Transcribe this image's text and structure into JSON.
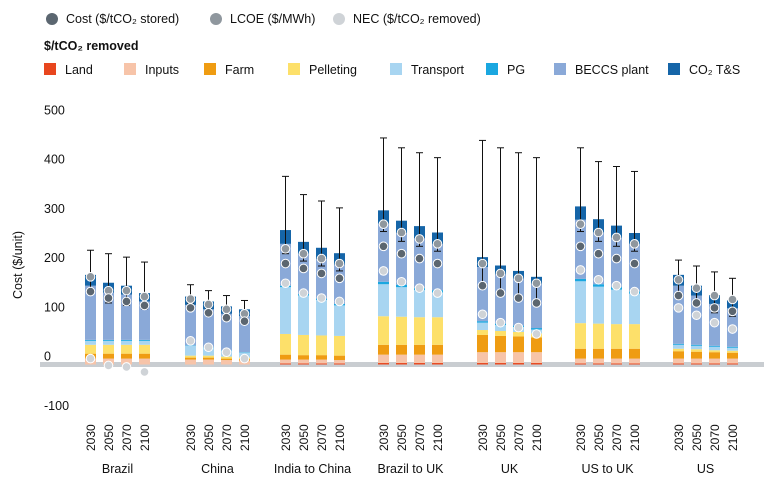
{
  "legend": {
    "markers": [
      {
        "label": "Cost ($/tCO₂ stored)",
        "color": "#5b6670"
      },
      {
        "label": "LCOE ($/MWh)",
        "color": "#8f979e"
      },
      {
        "label": "NEC ($/tCO₂ removed)",
        "color": "#cfd3d7"
      }
    ],
    "stack_title": "$/tCO₂ removed",
    "components": [
      {
        "label": "Land",
        "color": "#e8461e"
      },
      {
        "label": "Inputs",
        "color": "#f7c4a9"
      },
      {
        "label": "Farm",
        "color": "#ef9c12"
      },
      {
        "label": "Pelleting",
        "color": "#fde06a"
      },
      {
        "label": "Transport",
        "color": "#a8d5f1"
      },
      {
        "label": "PG",
        "color": "#1aa7e0"
      },
      {
        "label": "BECCS plant",
        "color": "#8aa9d8"
      },
      {
        "label": "CO₂ T&S",
        "color": "#1565a8"
      }
    ]
  },
  "chart_data": {
    "type": "bar",
    "stacked": true,
    "ylabel": "Cost ($/unit)",
    "ylim": [
      -100,
      500
    ],
    "yticks": [
      -100,
      0,
      100,
      200,
      300,
      400,
      500
    ],
    "grid": false,
    "legend_position": "top-left",
    "groups": [
      {
        "name": "Brazil",
        "years": [
          "2030",
          "2050",
          "2070",
          "2100"
        ],
        "bars": [
          {
            "year": "2030",
            "components": [
              0,
              12,
              10,
              18,
              8,
              2,
              110,
              22
            ],
            "cost": 148,
            "lcoe": 178,
            "nec": 12,
            "err": [
              150,
              232
            ]
          },
          {
            "year": "2050",
            "components": [
              0,
              12,
              10,
              18,
              8,
              2,
              96,
              20
            ],
            "cost": 135,
            "lcoe": 150,
            "nec": -2,
            "err": [
              125,
              225
            ]
          },
          {
            "year": "2070",
            "components": [
              0,
              12,
              10,
              18,
              8,
              2,
              92,
              18
            ],
            "cost": 128,
            "lcoe": 150,
            "nec": -5,
            "err": [
              120,
              218
            ]
          },
          {
            "year": "2100",
            "components": [
              0,
              12,
              10,
              18,
              8,
              2,
              78,
              17
            ],
            "cost": 120,
            "lcoe": 138,
            "nec": -15,
            "err": [
              113,
              208
            ]
          }
        ]
      },
      {
        "name": "China",
        "years": [
          "2030",
          "2050",
          "2070",
          "2100"
        ],
        "bars": [
          {
            "year": "2030",
            "components": [
              0,
              10,
              4,
              4,
              20,
              1,
              82,
              17
            ],
            "cost": 115,
            "lcoe": 133,
            "nec": 48,
            "err": [
              125,
              162
            ]
          },
          {
            "year": "2050",
            "components": [
              0,
              10,
              4,
              4,
              16,
              1,
              77,
              16
            ],
            "cost": 105,
            "lcoe": 122,
            "nec": 35,
            "err": [
              115,
              150
            ]
          },
          {
            "year": "2070",
            "components": [
              0,
              9,
              3,
              4,
              12,
              1,
              74,
              15
            ],
            "cost": 95,
            "lcoe": 112,
            "nec": 25,
            "err": [
              100,
              140
            ]
          },
          {
            "year": "2100",
            "components": [
              0,
              8,
              3,
              3,
              10,
              1,
              73,
              14
            ],
            "cost": 88,
            "lcoe": 103,
            "nec": 12,
            "err": [
              95,
              130
            ]
          }
        ]
      },
      {
        "name": "India to China",
        "years": [
          "2030",
          "2050",
          "2070",
          "2100"
        ],
        "bars": [
          {
            "year": "2030",
            "components": [
              2,
              8,
              10,
              42,
              95,
              3,
              85,
              28
            ],
            "cost": 205,
            "lcoe": 235,
            "nec": 165,
            "err": [
              225,
              382
            ]
          },
          {
            "year": "2050",
            "components": [
              2,
              8,
              9,
              41,
              80,
              3,
              82,
              24
            ],
            "cost": 195,
            "lcoe": 225,
            "nec": 145,
            "err": [
              210,
              345
            ]
          },
          {
            "year": "2070",
            "components": [
              2,
              8,
              9,
              40,
              72,
              3,
              80,
              23
            ],
            "cost": 185,
            "lcoe": 215,
            "nec": 135,
            "err": [
              200,
              332
            ]
          },
          {
            "year": "2100",
            "components": [
              2,
              7,
              9,
              40,
              62,
              3,
              80,
              23
            ],
            "cost": 175,
            "lcoe": 205,
            "nec": 128,
            "err": [
              190,
              318
            ]
          }
        ]
      },
      {
        "name": "Brazil to UK",
        "years": [
          "2030",
          "2050",
          "2070",
          "2100"
        ],
        "bars": [
          {
            "year": "2030",
            "components": [
              3,
              17,
              20,
              58,
              65,
              5,
              118,
              27
            ],
            "cost": 240,
            "lcoe": 285,
            "nec": 190,
            "err": [
              270,
              460
            ]
          },
          {
            "year": "2050",
            "components": [
              3,
              17,
              20,
              57,
              60,
              5,
              105,
              25
            ],
            "cost": 225,
            "lcoe": 268,
            "nec": 168,
            "err": [
              250,
              440
            ]
          },
          {
            "year": "2070",
            "components": [
              3,
              17,
              20,
              56,
              55,
              5,
              100,
              25
            ],
            "cost": 215,
            "lcoe": 255,
            "nec": 155,
            "err": [
              240,
              430
            ]
          },
          {
            "year": "2100",
            "components": [
              3,
              17,
              20,
              56,
              50,
              5,
              93,
              24
            ],
            "cost": 205,
            "lcoe": 245,
            "nec": 145,
            "err": [
              230,
              420
            ]
          }
        ]
      },
      {
        "name": "UK",
        "years": [
          "2030",
          "2050",
          "2070",
          "2100"
        ],
        "bars": [
          {
            "year": "2030",
            "components": [
              3,
              22,
              35,
              10,
              15,
              3,
              110,
              20
            ],
            "cost": 160,
            "lcoe": 205,
            "nec": 102,
            "err": [
              160,
              455
            ]
          },
          {
            "year": "2050",
            "components": [
              3,
              22,
              33,
              10,
              12,
              3,
              100,
              18
            ],
            "cost": 145,
            "lcoe": 185,
            "nec": 85,
            "err": [
              140,
              440
            ]
          },
          {
            "year": "2070",
            "components": [
              3,
              22,
              32,
              9,
              10,
              3,
              95,
              16
            ],
            "cost": 135,
            "lcoe": 175,
            "nec": 75,
            "err": [
              130,
              430
            ]
          },
          {
            "year": "2100",
            "components": [
              3,
              22,
              30,
              8,
              8,
              3,
              90,
              14
            ],
            "cost": 125,
            "lcoe": 165,
            "nec": 62,
            "err": [
              120,
              420
            ]
          }
        ]
      },
      {
        "name": "US to UK",
        "years": [
          "2030",
          "2050",
          "2070",
          "2100"
        ],
        "bars": [
          {
            "year": "2030",
            "components": [
              2,
              10,
              20,
              52,
              85,
              5,
              120,
              27
            ],
            "cost": 240,
            "lcoe": 285,
            "nec": 192,
            "err": [
              270,
              440
            ]
          },
          {
            "year": "2050",
            "components": [
              2,
              10,
              20,
              51,
              75,
              5,
              105,
              27
            ],
            "cost": 225,
            "lcoe": 268,
            "nec": 172,
            "err": [
              250,
              412
            ]
          },
          {
            "year": "2070",
            "components": [
              2,
              10,
              20,
              50,
              70,
              5,
              100,
              25
            ],
            "cost": 215,
            "lcoe": 258,
            "nec": 160,
            "err": [
              240,
              402
            ]
          },
          {
            "year": "2100",
            "components": [
              2,
              10,
              20,
              50,
              62,
              5,
              95,
              23
            ],
            "cost": 205,
            "lcoe": 245,
            "nec": 148,
            "err": [
              230,
              392
            ]
          }
        ]
      },
      {
        "name": "US",
        "years": [
          "2030",
          "2050",
          "2070",
          "2100"
        ],
        "bars": [
          {
            "year": "2030",
            "components": [
              2,
              10,
              15,
              5,
              8,
              2,
              118,
              22
            ],
            "cost": 140,
            "lcoe": 172,
            "nec": 115,
            "err": [
              140,
              212
            ]
          },
          {
            "year": "2050",
            "components": [
              2,
              10,
              14,
              5,
              7,
              2,
              100,
              20
            ],
            "cost": 125,
            "lcoe": 155,
            "nec": 100,
            "err": [
              120,
              200
            ]
          },
          {
            "year": "2070",
            "components": [
              2,
              10,
              13,
              4,
              7,
              2,
              85,
              18
            ],
            "cost": 115,
            "lcoe": 140,
            "nec": 85,
            "err": [
              105,
              188
            ]
          },
          {
            "year": "2100",
            "components": [
              2,
              10,
              12,
              4,
              6,
              2,
              78,
              16
            ],
            "cost": 108,
            "lcoe": 132,
            "nec": 72,
            "err": [
              98,
              175
            ]
          }
        ]
      }
    ]
  }
}
